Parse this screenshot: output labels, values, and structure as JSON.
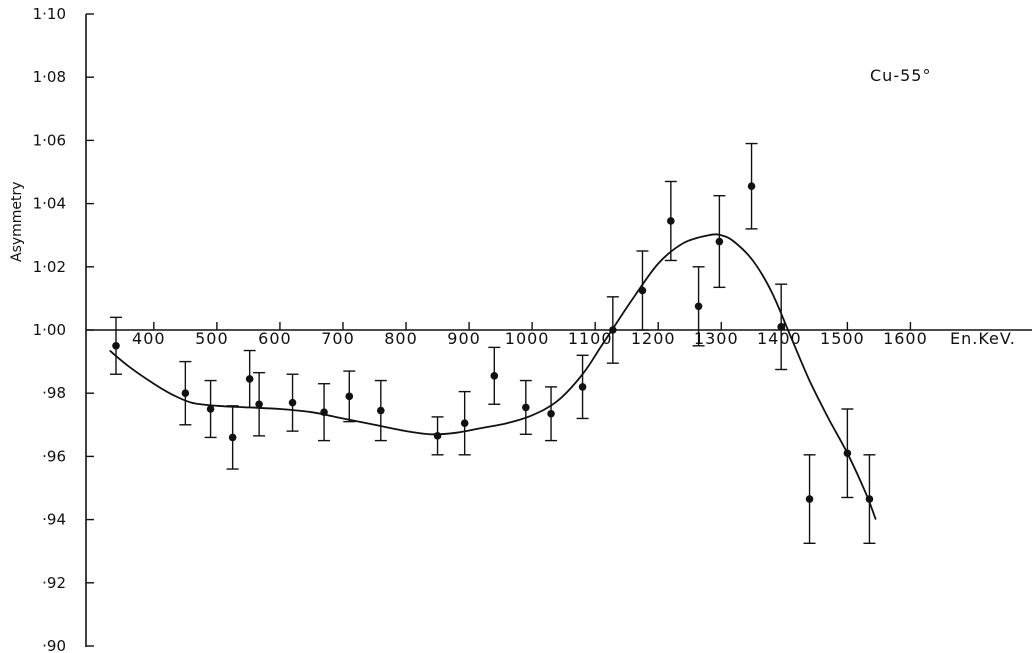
{
  "chart_data": {
    "type": "scatter",
    "title": "",
    "annotation": "Cu-55°",
    "ylabel": "Asymmetry",
    "xlabel": "En.KeV.",
    "xlim": [
      310,
      1680
    ],
    "ylim": [
      0.9,
      1.1
    ],
    "y_ticks": [
      {
        "value": 1.1,
        "label": "1·10"
      },
      {
        "value": 1.08,
        "label": "1·08"
      },
      {
        "value": 1.06,
        "label": "1·06"
      },
      {
        "value": 1.04,
        "label": "1·04"
      },
      {
        "value": 1.02,
        "label": "1·02"
      },
      {
        "value": 1.0,
        "label": "1·00"
      },
      {
        "value": 0.98,
        "label": "·98"
      },
      {
        "value": 0.96,
        "label": "·96"
      },
      {
        "value": 0.94,
        "label": "·94"
      },
      {
        "value": 0.92,
        "label": "·92"
      },
      {
        "value": 0.9,
        "label": "·90"
      }
    ],
    "x_ticks": [
      {
        "value": 400,
        "label": "400"
      },
      {
        "value": 500,
        "label": "500"
      },
      {
        "value": 600,
        "label": "600"
      },
      {
        "value": 700,
        "label": "700"
      },
      {
        "value": 800,
        "label": "800"
      },
      {
        "value": 900,
        "label": "900"
      },
      {
        "value": 1000,
        "label": "1000"
      },
      {
        "value": 1100,
        "label": "1100"
      },
      {
        "value": 1200,
        "label": "1200"
      },
      {
        "value": 1300,
        "label": "1300"
      },
      {
        "value": 1400,
        "label": "1400"
      },
      {
        "value": 1500,
        "label": "1500"
      },
      {
        "value": 1600,
        "label": "1600"
      }
    ],
    "points": [
      {
        "x": 340,
        "y": 0.995,
        "err": 0.009
      },
      {
        "x": 450,
        "y": 0.98,
        "err": 0.01
      },
      {
        "x": 490,
        "y": 0.975,
        "err": 0.009
      },
      {
        "x": 525,
        "y": 0.966,
        "err": 0.01
      },
      {
        "x": 552,
        "y": 0.9845,
        "err": 0.009
      },
      {
        "x": 567,
        "y": 0.9765,
        "err": 0.01
      },
      {
        "x": 620,
        "y": 0.977,
        "err": 0.009
      },
      {
        "x": 670,
        "y": 0.974,
        "err": 0.009
      },
      {
        "x": 710,
        "y": 0.979,
        "err": 0.008
      },
      {
        "x": 760,
        "y": 0.9745,
        "err": 0.0095
      },
      {
        "x": 850,
        "y": 0.9665,
        "err": 0.006
      },
      {
        "x": 893,
        "y": 0.9705,
        "err": 0.01
      },
      {
        "x": 940,
        "y": 0.9855,
        "err": 0.009
      },
      {
        "x": 990,
        "y": 0.9755,
        "err": 0.0085
      },
      {
        "x": 1030,
        "y": 0.9735,
        "err": 0.0085
      },
      {
        "x": 1080,
        "y": 0.982,
        "err": 0.01
      },
      {
        "x": 1128,
        "y": 1.0,
        "err": 0.0105
      },
      {
        "x": 1175,
        "y": 1.0125,
        "err": 0.0125
      },
      {
        "x": 1220,
        "y": 1.0345,
        "err": 0.0125
      },
      {
        "x": 1264,
        "y": 1.0075,
        "err": 0.0125
      },
      {
        "x": 1297,
        "y": 1.028,
        "err": 0.0145
      },
      {
        "x": 1348,
        "y": 1.0455,
        "err": 0.0135
      },
      {
        "x": 1395,
        "y": 1.001,
        "err": 0.0135
      },
      {
        "x": 1440,
        "y": 0.9465,
        "err": 0.014
      },
      {
        "x": 1500,
        "y": 0.961,
        "err": 0.014
      },
      {
        "x": 1535,
        "y": 0.9465,
        "err": 0.014
      }
    ],
    "fit_curve": [
      [
        330,
        0.9935
      ],
      [
        360,
        0.9885
      ],
      [
        400,
        0.983
      ],
      [
        430,
        0.9795
      ],
      [
        460,
        0.977
      ],
      [
        500,
        0.976
      ],
      [
        550,
        0.9755
      ],
      [
        600,
        0.975
      ],
      [
        650,
        0.974
      ],
      [
        700,
        0.972
      ],
      [
        750,
        0.97
      ],
      [
        800,
        0.968
      ],
      [
        840,
        0.967
      ],
      [
        880,
        0.9675
      ],
      [
        920,
        0.969
      ],
      [
        960,
        0.9705
      ],
      [
        1000,
        0.973
      ],
      [
        1040,
        0.9775
      ],
      [
        1080,
        0.986
      ],
      [
        1110,
        0.995
      ],
      [
        1130,
        1.001
      ],
      [
        1160,
        1.01
      ],
      [
        1200,
        1.021
      ],
      [
        1240,
        1.0275
      ],
      [
        1280,
        1.03
      ],
      [
        1300,
        1.03
      ],
      [
        1320,
        1.028
      ],
      [
        1350,
        1.022
      ],
      [
        1380,
        1.012
      ],
      [
        1410,
        0.998
      ],
      [
        1440,
        0.984
      ],
      [
        1470,
        0.972
      ],
      [
        1500,
        0.961
      ],
      [
        1530,
        0.948
      ],
      [
        1545,
        0.94
      ]
    ],
    "grid": false,
    "legend": "none"
  }
}
